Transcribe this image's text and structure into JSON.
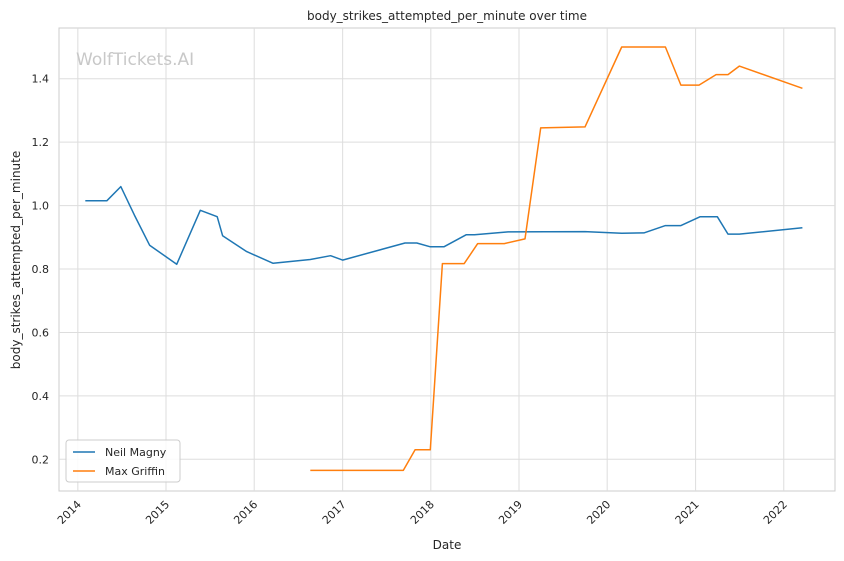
{
  "chart_data": {
    "type": "line",
    "title": "body_strikes_attempted_per_minute over time",
    "xlabel": "Date",
    "ylabel": "body_strikes_attempted_per_minute",
    "watermark": "WolfTickets.AI",
    "x_ticks": [
      "2014",
      "2015",
      "2016",
      "2017",
      "2018",
      "2019",
      "2020",
      "2021",
      "2022"
    ],
    "y_ticks": [
      "0.2",
      "0.4",
      "0.6",
      "0.8",
      "1.0",
      "1.2",
      "1.4"
    ],
    "ylim": [
      0.1,
      1.56
    ],
    "xlim": [
      "2013-10-15",
      "2022-08-01"
    ],
    "grid": true,
    "legend_position": "lower-left",
    "series": [
      {
        "name": "Neil Magny",
        "color": "#1f77b4",
        "points": [
          [
            "2014-02-01",
            1.015
          ],
          [
            "2014-05-01",
            1.015
          ],
          [
            "2014-06-28",
            1.06
          ],
          [
            "2014-08-23",
            0.97
          ],
          [
            "2014-10-25",
            0.875
          ],
          [
            "2015-02-14",
            0.815
          ],
          [
            "2015-05-23",
            0.985
          ],
          [
            "2015-08-01",
            0.965
          ],
          [
            "2015-08-23",
            0.905
          ],
          [
            "2015-12-01",
            0.855
          ],
          [
            "2016-03-19",
            0.818
          ],
          [
            "2016-08-20",
            0.83
          ],
          [
            "2016-11-12",
            0.842
          ],
          [
            "2017-01-01",
            0.828
          ],
          [
            "2017-09-16",
            0.882
          ],
          [
            "2017-11-04",
            0.882
          ],
          [
            "2017-12-30",
            0.87
          ],
          [
            "2018-02-24",
            0.87
          ],
          [
            "2018-05-27",
            0.908
          ],
          [
            "2018-07-01",
            0.908
          ],
          [
            "2018-11-17",
            0.917
          ],
          [
            "2019-10-01",
            0.918
          ],
          [
            "2020-03-01",
            0.913
          ],
          [
            "2020-06-01",
            0.914
          ],
          [
            "2020-08-29",
            0.937
          ],
          [
            "2020-11-01",
            0.937
          ],
          [
            "2021-01-20",
            0.965
          ],
          [
            "2021-04-01",
            0.965
          ],
          [
            "2021-05-15",
            0.91
          ],
          [
            "2021-07-01",
            0.91
          ],
          [
            "2022-03-19",
            0.93
          ]
        ]
      },
      {
        "name": "Max Griffin",
        "color": "#ff7f0e",
        "points": [
          [
            "2016-08-20",
            0.165
          ],
          [
            "2017-09-09",
            0.165
          ],
          [
            "2017-10-28",
            0.23
          ],
          [
            "2017-12-30",
            0.23
          ],
          [
            "2018-02-18",
            0.817
          ],
          [
            "2018-05-19",
            0.817
          ],
          [
            "2018-07-14",
            0.88
          ],
          [
            "2018-11-01",
            0.88
          ],
          [
            "2019-01-26",
            0.895
          ],
          [
            "2019-04-01",
            1.245
          ],
          [
            "2019-10-01",
            1.248
          ],
          [
            "2020-03-01",
            1.5
          ],
          [
            "2020-08-29",
            1.5
          ],
          [
            "2020-11-01",
            1.38
          ],
          [
            "2021-01-15",
            1.38
          ],
          [
            "2021-03-27",
            1.413
          ],
          [
            "2021-05-15",
            1.413
          ],
          [
            "2021-07-01",
            1.44
          ],
          [
            "2022-03-19",
            1.37
          ]
        ]
      }
    ]
  }
}
